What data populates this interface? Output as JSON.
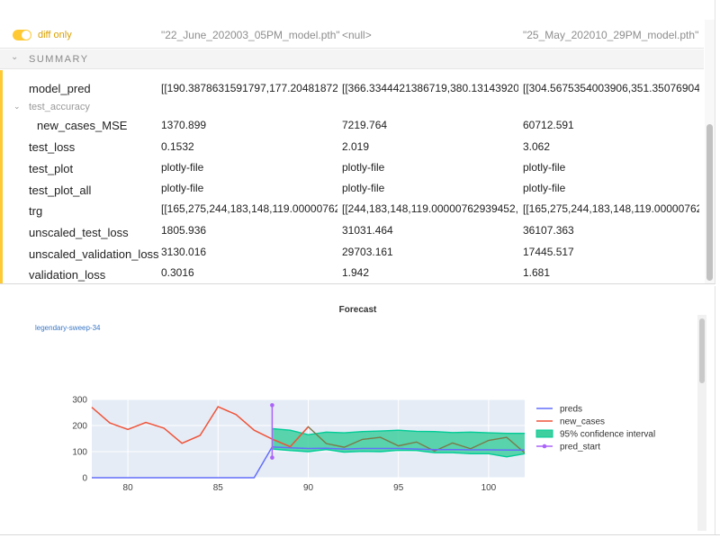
{
  "header": {
    "toggle_label": "diff only",
    "columns": [
      "\"22_June_202003_05PM_model.pth\"",
      "<null>",
      "\"25_May_202010_29PM_model.pth\""
    ]
  },
  "summary": {
    "label": "SUMMARY"
  },
  "rows": [
    {
      "label": "model_pred",
      "values": [
        "[[190.3878631591797,177.20481872...",
        "[[366.3344421386719,380.13143920...",
        "[[304.5675354003906,351.35076904..."
      ]
    },
    {
      "group": "test_accuracy"
    },
    {
      "label": "new_cases_MSE",
      "values": [
        "1370.899",
        "7219.764",
        "60712.591"
      ]
    },
    {
      "label": "test_loss",
      "values": [
        "0.1532",
        "2.019",
        "3.062"
      ]
    },
    {
      "label": "test_plot",
      "values": [
        "plotly-file",
        "plotly-file",
        "plotly-file"
      ]
    },
    {
      "label": "test_plot_all",
      "values": [
        "plotly-file",
        "plotly-file",
        "plotly-file"
      ]
    },
    {
      "label": "trg",
      "values": [
        "[[165,275,244,183,148,119.00000762...",
        "[[244,183,148,119.00000762939452,...",
        "[[165,275,244,183,148,119.00000762..."
      ]
    },
    {
      "label": "unscaled_test_loss",
      "values": [
        "1805.936",
        "31031.464",
        "36107.363"
      ]
    },
    {
      "label": "unscaled_validation_loss",
      "values": [
        "3130.016",
        "29703.161",
        "17445.517"
      ]
    },
    {
      "label": "validation_loss",
      "values": [
        "0.3016",
        "1.942",
        "1.681"
      ]
    }
  ],
  "chart_panel": {
    "run_name": "legendary-sweep-34"
  },
  "chart_data": {
    "type": "line",
    "title": "Forecast",
    "xlabel": "",
    "ylabel": "",
    "xlim": [
      78,
      102
    ],
    "ylim": [
      0,
      300
    ],
    "xticks": [
      80,
      85,
      90,
      95,
      100
    ],
    "yticks": [
      0,
      100,
      200,
      300
    ],
    "legend_position": "right",
    "series": [
      {
        "name": "preds",
        "color": "#636efa",
        "x": [
          78,
          79,
          80,
          81,
          82,
          83,
          84,
          85,
          86,
          87,
          88,
          89,
          90,
          91,
          92,
          93,
          94,
          95,
          96,
          97,
          98,
          99,
          100,
          101,
          102
        ],
        "y": [
          0,
          0,
          0,
          0,
          0,
          0,
          0,
          0,
          0,
          0,
          118,
          115,
          112,
          113,
          110,
          112,
          112,
          112,
          110,
          108,
          108,
          107,
          107,
          106,
          106
        ]
      },
      {
        "name": "new_cases",
        "color": "#ef553b",
        "x": [
          78,
          79,
          80,
          81,
          82,
          83,
          84,
          85,
          86,
          87,
          88,
          89,
          90
        ],
        "y": [
          270,
          210,
          185,
          212,
          190,
          132,
          162,
          272,
          242,
          182,
          148,
          119,
          195
        ]
      },
      {
        "name": "95% confidence interval",
        "color": "#00cc96",
        "fill": "#3fcf9e",
        "x": [
          88,
          89,
          90,
          91,
          92,
          93,
          94,
          95,
          96,
          97,
          98,
          99,
          100,
          101,
          102
        ],
        "upper": [
          188,
          182,
          165,
          175,
          172,
          177,
          179,
          182,
          178,
          177,
          173,
          175,
          172,
          170,
          170
        ],
        "lower": [
          110,
          104,
          100,
          108,
          98,
          101,
          100,
          105,
          104,
          96,
          96,
          92,
          92,
          80,
          92
        ]
      },
      {
        "name": "pred_start",
        "color": "#ab63fa",
        "x": [
          88,
          88
        ],
        "y": [
          77,
          278
        ]
      }
    ],
    "actual_segment": {
      "color": "#7a7a4a",
      "x": [
        88,
        89,
        90,
        91,
        92,
        93,
        94,
        95,
        96,
        97,
        98,
        99,
        100,
        101,
        102
      ],
      "y": [
        148,
        119,
        195,
        131,
        117,
        147,
        155,
        122,
        137,
        102,
        133,
        111,
        143,
        155,
        95
      ]
    }
  }
}
